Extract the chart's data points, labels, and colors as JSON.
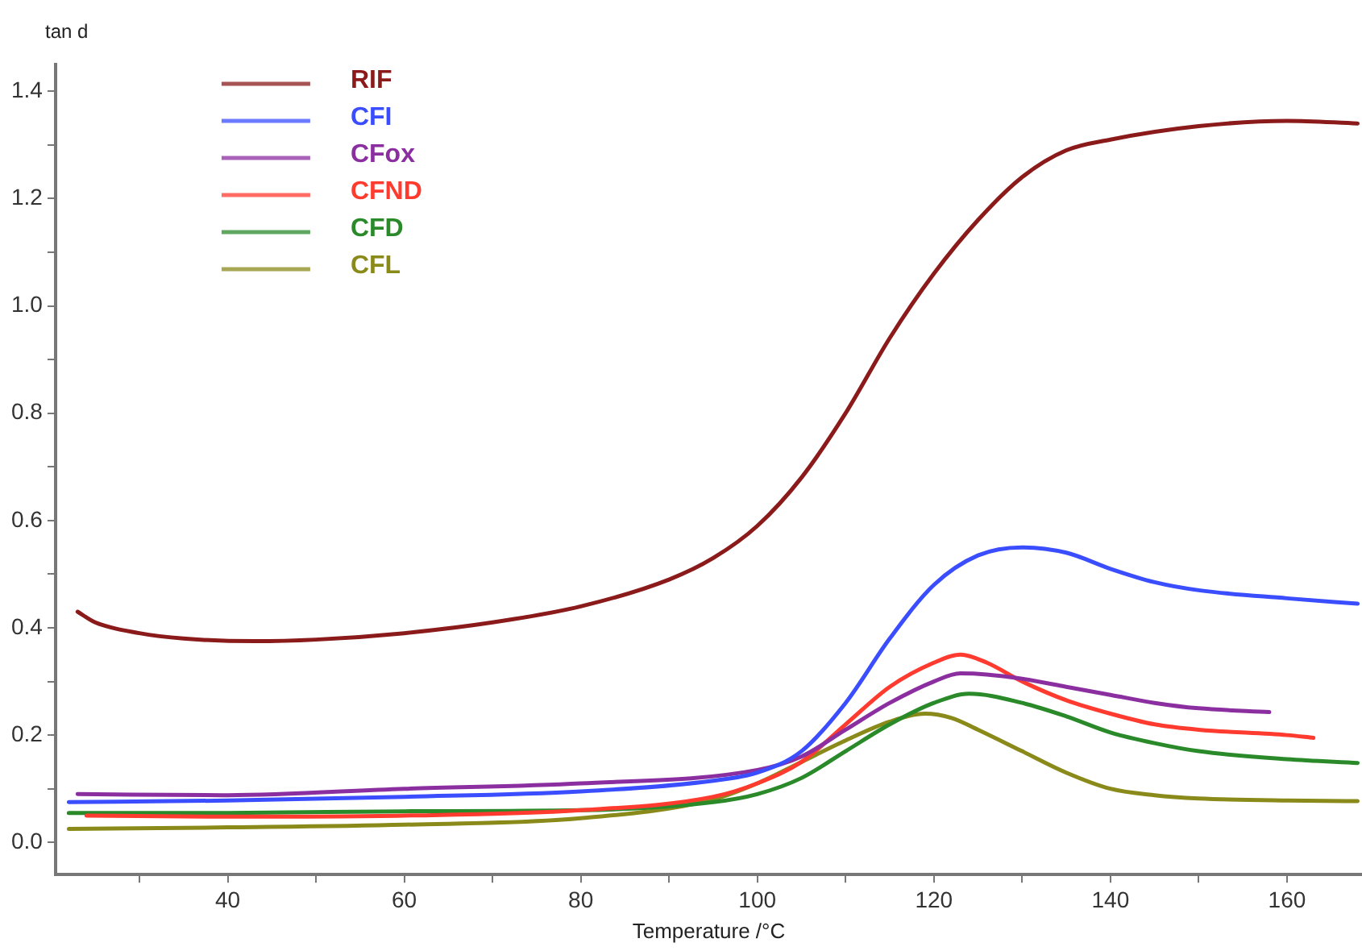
{
  "chart_data": {
    "type": "line",
    "ylabel": "tan d",
    "xlabel": "Temperature /°C",
    "xlim": [
      20.5,
      168.5
    ],
    "ylim": [
      -0.06,
      1.45
    ],
    "xticks": [
      {
        "value": 30,
        "label": null
      },
      40,
      {
        "value": 50,
        "label": null
      },
      60,
      {
        "value": 70,
        "label": null
      },
      80,
      {
        "value": 90,
        "label": null
      },
      100,
      {
        "value": 110,
        "label": null
      },
      120,
      {
        "value": 130,
        "label": null
      },
      140,
      {
        "value": 150,
        "label": null
      },
      160
    ],
    "yticks": [
      {
        "value": 0,
        "label": "0.0"
      },
      {
        "value": 0.1,
        "label": null
      },
      0.2,
      {
        "value": 0.3,
        "label": null
      },
      0.4,
      {
        "value": 0.5,
        "label": null
      },
      0.6,
      {
        "value": 0.7,
        "label": null
      },
      0.8,
      {
        "value": 0.9,
        "label": null
      },
      {
        "value": 1,
        "label": "1.0"
      },
      {
        "value": 1.1,
        "label": null
      },
      1.2,
      {
        "value": 1.3,
        "label": null
      },
      1.4
    ],
    "grid": false,
    "legend": "top left",
    "marker": "none",
    "line_style": "solid",
    "series": [
      {
        "name": "RIF",
        "color": "#8b1a1a",
        "x": [
          23,
          25,
          30,
          35,
          43,
          50,
          60,
          70,
          80,
          90,
          95,
          100,
          105,
          110,
          115,
          120,
          125,
          130,
          135,
          140,
          150,
          160,
          168
        ],
        "values": [
          0.43,
          0.41,
          0.39,
          0.38,
          0.375,
          0.378,
          0.39,
          0.41,
          0.44,
          0.49,
          0.53,
          0.59,
          0.68,
          0.8,
          0.94,
          1.06,
          1.16,
          1.24,
          1.29,
          1.31,
          1.335,
          1.345,
          1.34
        ]
      },
      {
        "name": "CFI",
        "color": "#3a4dff",
        "x": [
          22,
          40,
          60,
          80,
          95,
          100,
          105,
          110,
          115,
          120,
          125,
          130,
          135,
          140,
          145,
          150,
          160,
          168
        ],
        "values": [
          0.075,
          0.078,
          0.085,
          0.095,
          0.115,
          0.13,
          0.17,
          0.26,
          0.38,
          0.48,
          0.535,
          0.55,
          0.54,
          0.51,
          0.485,
          0.47,
          0.455,
          0.445
        ]
      },
      {
        "name": "CFox",
        "color": "#8b2fa0",
        "x": [
          23,
          40,
          60,
          80,
          100,
          105,
          110,
          115,
          120,
          123,
          126,
          130,
          135,
          140,
          145,
          150,
          158
        ],
        "values": [
          0.09,
          0.088,
          0.1,
          0.11,
          0.135,
          0.16,
          0.21,
          0.26,
          0.3,
          0.315,
          0.313,
          0.305,
          0.29,
          0.275,
          0.26,
          0.25,
          0.243
        ]
      },
      {
        "name": "CFND",
        "color": "#ff3b30",
        "x": [
          24,
          40,
          60,
          80,
          95,
          100,
          105,
          110,
          115,
          120,
          123,
          126,
          130,
          135,
          140,
          145,
          150,
          160,
          163
        ],
        "values": [
          0.05,
          0.048,
          0.05,
          0.06,
          0.085,
          0.11,
          0.15,
          0.22,
          0.29,
          0.335,
          0.35,
          0.335,
          0.3,
          0.265,
          0.24,
          0.22,
          0.21,
          0.2,
          0.195
        ]
      },
      {
        "name": "CFD",
        "color": "#2a8a2a",
        "x": [
          22,
          40,
          60,
          80,
          95,
          100,
          105,
          110,
          115,
          120,
          124,
          130,
          135,
          140,
          145,
          150,
          160,
          168
        ],
        "values": [
          0.055,
          0.055,
          0.058,
          0.06,
          0.075,
          0.09,
          0.12,
          0.17,
          0.22,
          0.26,
          0.277,
          0.26,
          0.235,
          0.205,
          0.185,
          0.17,
          0.155,
          0.148
        ]
      },
      {
        "name": "CFL",
        "color": "#8a8a1a",
        "x": [
          22,
          40,
          60,
          80,
          95,
          100,
          105,
          110,
          115,
          119,
          122,
          125,
          130,
          135,
          140,
          145,
          150,
          160,
          168
        ],
        "values": [
          0.025,
          0.028,
          0.033,
          0.045,
          0.08,
          0.11,
          0.15,
          0.19,
          0.225,
          0.24,
          0.232,
          0.21,
          0.17,
          0.13,
          0.1,
          0.088,
          0.082,
          0.078,
          0.077
        ]
      }
    ]
  }
}
